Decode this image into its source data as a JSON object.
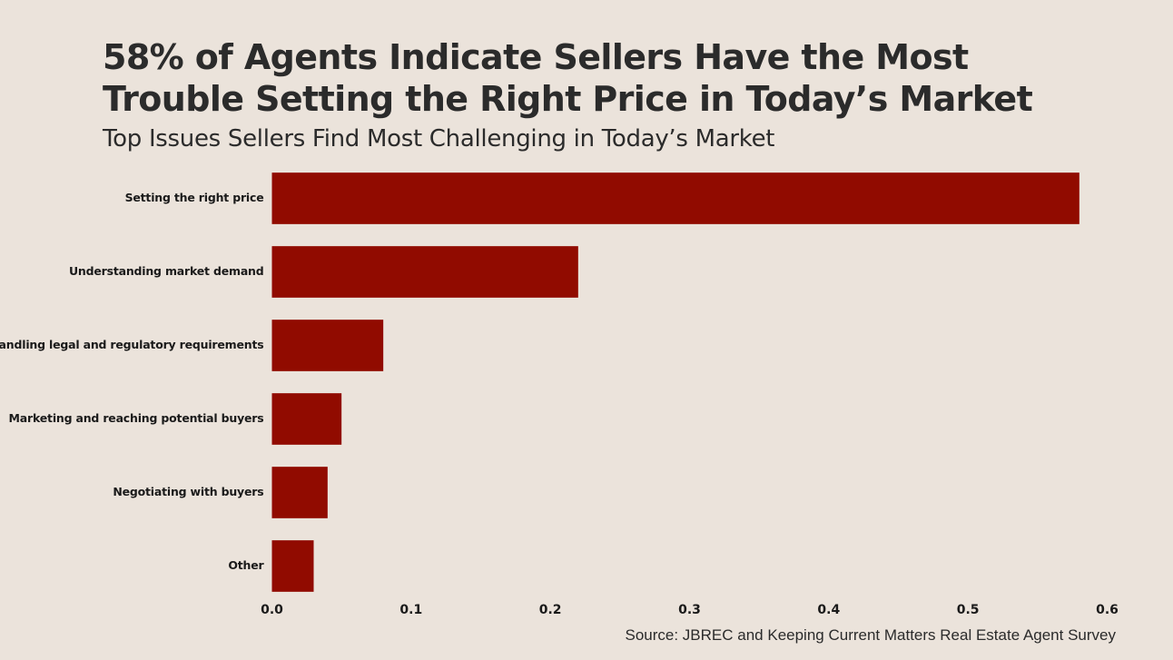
{
  "header": {
    "title": "58% of Agents Indicate Sellers Have the Most Trouble Setting the Right Price in Today’s Market",
    "subtitle": "Top Issues Sellers Find Most Challenging in Today’s Market"
  },
  "footer": {
    "source": "Source: JBREC and Keeping Current Matters Real Estate Agent Survey"
  },
  "colors": {
    "bar": "#910b00",
    "background": "#ebe3db",
    "text": "#2b2b2b"
  },
  "chart_data": {
    "type": "bar",
    "orientation": "horizontal",
    "categories": [
      "Setting the right price",
      "Understanding market demand",
      "Handling legal and regulatory requirements",
      "Marketing and reaching potential buyers",
      "Negotiating with buyers",
      "Other"
    ],
    "values": [
      0.58,
      0.22,
      0.08,
      0.05,
      0.04,
      0.03
    ],
    "title": "58% of Agents Indicate Sellers Have the Most Trouble Setting the Right Price in Today’s Market",
    "subtitle": "Top Issues Sellers Find Most Challenging in Today’s Market",
    "xlabel": "",
    "ylabel": "",
    "xlim": [
      0,
      0.6
    ],
    "xticks": [
      "0.0",
      "0.1",
      "0.2",
      "0.3",
      "0.4",
      "0.5",
      "0.6"
    ],
    "grid": false,
    "legend": "none"
  }
}
